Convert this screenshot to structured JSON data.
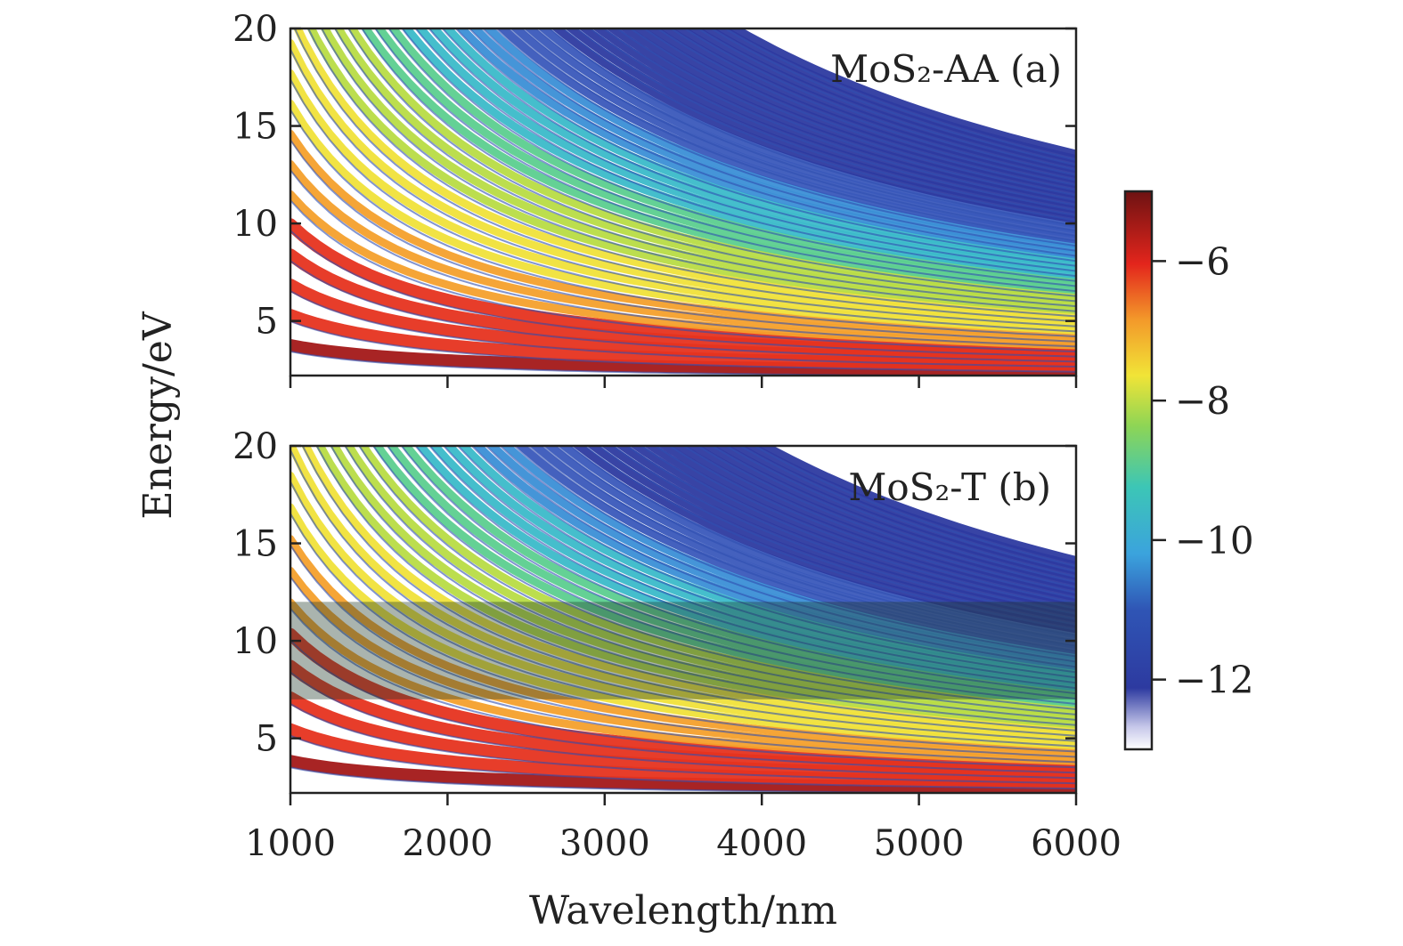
{
  "chart_data": [
    {
      "type": "heatmap",
      "panel_label": "MoS₂-AA (a)",
      "xlabel": "Wavelength/nm",
      "ylabel": "Energy/eV",
      "xlim": [
        1000,
        6000
      ],
      "ylim": [
        2.2,
        20
      ],
      "xticks": [
        "1000",
        "2000",
        "3000",
        "4000",
        "5000",
        "6000"
      ],
      "yticks": [
        "5",
        "10",
        "15",
        "20"
      ],
      "ytick_values": [
        5,
        10,
        15,
        20
      ],
      "xtick_values": [
        1000,
        2000,
        3000,
        4000,
        5000,
        6000
      ],
      "highlight_band": null
    },
    {
      "type": "heatmap",
      "panel_label": "MoS₂-T (b)",
      "xlabel": "Wavelength/nm",
      "ylabel": "Energy/eV",
      "xlim": [
        1000,
        6000
      ],
      "ylim": [
        2.2,
        20
      ],
      "xticks": [
        "1000",
        "2000",
        "3000",
        "4000",
        "5000",
        "6000"
      ],
      "yticks": [
        "5",
        "10",
        "15",
        "20"
      ],
      "ytick_values": [
        5,
        10,
        15,
        20
      ],
      "xtick_values": [
        1000,
        2000,
        3000,
        4000,
        5000,
        6000
      ],
      "highlight_band": [
        7,
        12
      ]
    }
  ],
  "colorbar": {
    "range": [
      -13,
      -5
    ],
    "ticks": [
      "−6",
      "−8",
      "−10",
      "−12"
    ],
    "tick_values": [
      -6,
      -8,
      -10,
      -12
    ],
    "colors": [
      "#ffffff",
      "#2b3fa6",
      "#3aa0dc",
      "#3cc9b0",
      "#9ed84a",
      "#f0e23a",
      "#f39a2a",
      "#e8281e",
      "#7a1414"
    ]
  },
  "figure": {
    "xlabel": "Wavelength/nm",
    "ylabel": "Energy/eV"
  }
}
